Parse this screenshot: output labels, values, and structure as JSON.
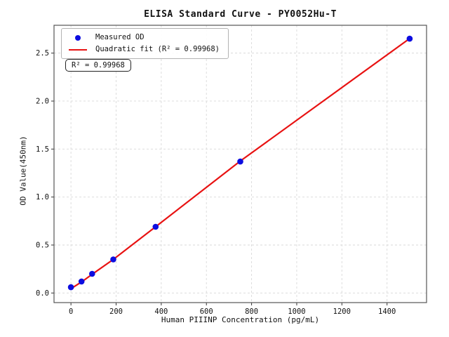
{
  "chart_data": {
    "type": "scatter",
    "title": "ELISA Standard Curve - PY0052Hu-T",
    "xlabel": "Human PIIINP Concentration (pg/mL)",
    "ylabel": "OD Value(450nm)",
    "annotation": "R² = 0.99968",
    "r_squared": 0.99968,
    "grid": true,
    "legend_position": "upper left",
    "xlim": [
      -75,
      1575
    ],
    "ylim": [
      -0.1,
      2.79
    ],
    "xticks": [
      0,
      200,
      400,
      600,
      800,
      1000,
      1200,
      1400
    ],
    "yticks": [
      "0.0",
      "0.5",
      "1.0",
      "1.5",
      "2.0",
      "2.5"
    ],
    "colors": {
      "measured": "#0d0de0",
      "fit": "#e81212",
      "grid": "#d9d9d9",
      "spine": "#555555",
      "tick_text": "#111111"
    },
    "series": [
      {
        "name": "Measured OD",
        "type": "scatter",
        "x": [
          0,
          46.9,
          93.8,
          187.5,
          375,
          750,
          1500
        ],
        "y": [
          0.06,
          0.12,
          0.2,
          0.35,
          0.69,
          1.37,
          2.65
        ]
      },
      {
        "name": "Quadratic fit (R² = 0.99968)",
        "type": "line",
        "x": [
          0,
          46.9,
          93.8,
          187.5,
          375,
          750,
          1500
        ],
        "y": [
          0.045,
          0.115,
          0.195,
          0.35,
          0.69,
          1.375,
          2.652
        ]
      }
    ]
  }
}
